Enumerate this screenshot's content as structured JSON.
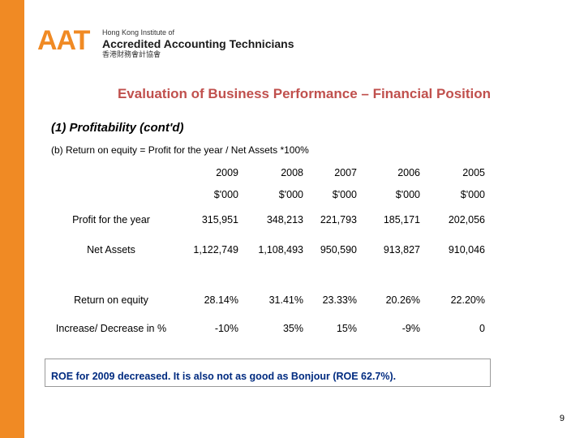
{
  "header": {
    "logo_mark": "AAT",
    "logo_line1": "Hong Kong Institute of",
    "logo_line2": "Accredited Accounting Technicians",
    "logo_line3": "香港財務會計協會"
  },
  "title": "Evaluation of Business Performance – Financial Position",
  "subtitle": "(1)  Profitability (cont'd)",
  "formula": "(b) Return on equity = Profit for the year / Net Assets *100%",
  "table": {
    "years": [
      "2009",
      "2008",
      "2007",
      "2006",
      "2005"
    ],
    "units": [
      "$'000",
      "$'000",
      "$'000",
      "$'000",
      "$'000"
    ],
    "rows": [
      {
        "label": "Profit for the year",
        "values": [
          "315,951",
          "348,213",
          "221,793",
          "185,171",
          "202,056"
        ]
      },
      {
        "label": "Net Assets",
        "values": [
          "1,122,749",
          "1,108,493",
          "950,590",
          "913,827",
          "910,046"
        ]
      },
      {
        "label": "Return on equity",
        "values": [
          "28.14%",
          "31.41%",
          "23.33%",
          "20.26%",
          "22.20%"
        ]
      },
      {
        "label": "Increase/ Decrease in %",
        "values": [
          "-10%",
          "35%",
          "15%",
          "-9%",
          "0"
        ]
      }
    ]
  },
  "note": "ROE for 2009 decreased.  It is also not as good as Bonjour (ROE 62.7%).",
  "page_number": "9",
  "colors": {
    "accent": "#f08a24",
    "title": "#c0504d",
    "note_text": "#002b80"
  }
}
